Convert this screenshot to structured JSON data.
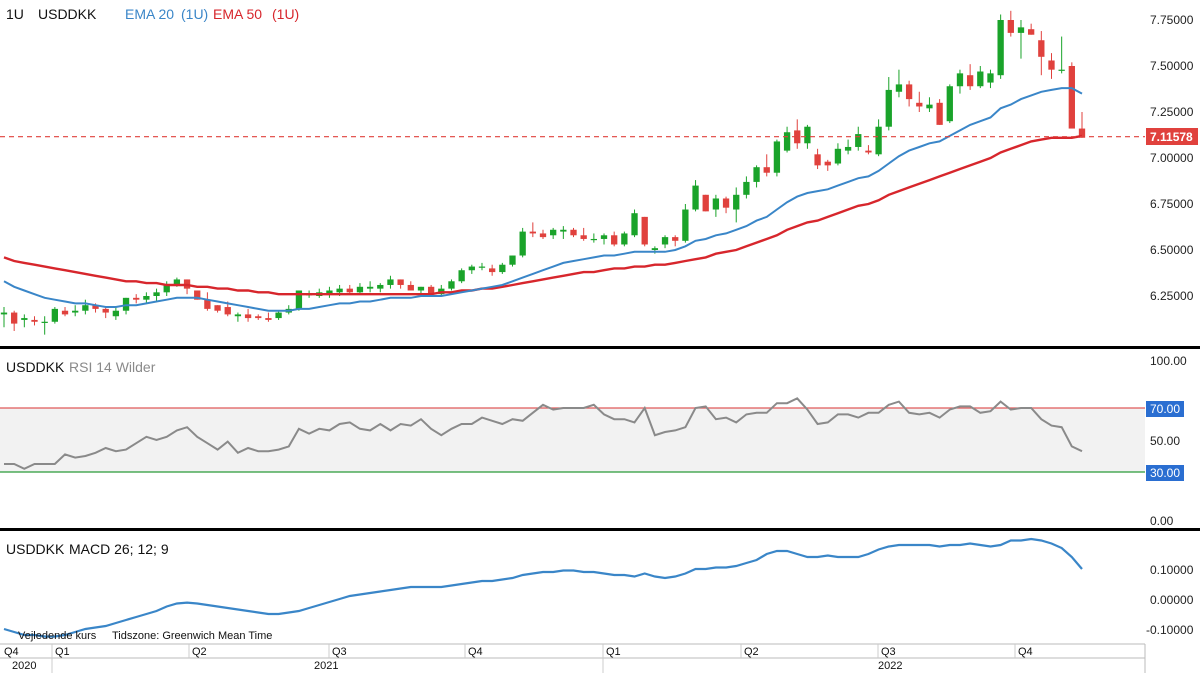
{
  "header": {
    "interval": "1U",
    "symbol": "USDDKK",
    "ema20_label": "EMA 20",
    "ema20_param": "(1U)",
    "ema50_label": "EMA 50",
    "ema50_param": "(1U)"
  },
  "colors": {
    "up": "#1aa32a",
    "down": "#e0413d",
    "ema20": "#3a86c8",
    "ema50": "#d7262c",
    "rsi": "#8a8a8a",
    "rsi_band": "#f2f2f2",
    "rsi_upper": "#e05a5a",
    "rsi_lower": "#2a9a38",
    "label_blue": "#2a6ed1",
    "macd": "#3a86c8",
    "separator": "#000000"
  },
  "price_panel": {
    "yticks": [
      "7.75000",
      "7.50000",
      "7.25000",
      "7.00000",
      "6.75000",
      "6.50000",
      "6.25000"
    ],
    "last_price_label": "7.11578",
    "last_price": 7.11578
  },
  "rsi_panel": {
    "symbol": "USDDKK",
    "title": "RSI 14 Wilder",
    "yticks": [
      "100.00",
      "50.00",
      "0.00"
    ],
    "upper_badge": "70.00",
    "lower_badge": "30.00"
  },
  "macd_panel": {
    "symbol": "USDDKK",
    "title": "MACD 26; 12; 9",
    "yticks": [
      "0.10000",
      "0.00000",
      "-0.10000"
    ]
  },
  "footer": {
    "note": "Vejledende kurs",
    "timezone": "Tidszone: Greenwich Mean Time",
    "quarters": [
      "Q4",
      "Q1",
      "Q2",
      "Q3",
      "Q4",
      "Q1",
      "Q2",
      "Q3",
      "Q4"
    ],
    "years": [
      "2020",
      "2021",
      "2022"
    ]
  },
  "chart_data": {
    "type": "candlestick",
    "interval": "1U",
    "series_names": [
      "USDDKK",
      "EMA 20",
      "EMA 50"
    ],
    "ylim": [
      6.02,
      7.82
    ],
    "candles": [
      [
        6.15,
        6.19,
        6.08,
        6.16
      ],
      [
        6.16,
        6.17,
        6.06,
        6.1
      ],
      [
        6.12,
        6.15,
        6.08,
        6.13
      ],
      [
        6.12,
        6.14,
        6.09,
        6.11
      ],
      [
        6.11,
        6.14,
        6.04,
        6.11
      ],
      [
        6.11,
        6.19,
        6.1,
        6.18
      ],
      [
        6.17,
        6.19,
        6.14,
        6.15
      ],
      [
        6.16,
        6.2,
        6.14,
        6.17
      ],
      [
        6.17,
        6.23,
        6.15,
        6.2
      ],
      [
        6.2,
        6.21,
        6.16,
        6.18
      ],
      [
        6.18,
        6.19,
        6.13,
        6.16
      ],
      [
        6.14,
        6.19,
        6.12,
        6.17
      ],
      [
        6.17,
        6.24,
        6.15,
        6.24
      ],
      [
        6.24,
        6.26,
        6.21,
        6.23
      ],
      [
        6.23,
        6.27,
        6.21,
        6.25
      ],
      [
        6.25,
        6.29,
        6.22,
        6.27
      ],
      [
        6.27,
        6.33,
        6.25,
        6.31
      ],
      [
        6.31,
        6.35,
        6.3,
        6.34
      ],
      [
        6.34,
        6.34,
        6.26,
        6.29
      ],
      [
        6.28,
        6.28,
        6.23,
        6.23
      ],
      [
        6.23,
        6.27,
        6.17,
        6.18
      ],
      [
        6.2,
        6.2,
        6.16,
        6.17
      ],
      [
        6.19,
        6.22,
        6.14,
        6.15
      ],
      [
        6.14,
        6.16,
        6.11,
        6.15
      ],
      [
        6.15,
        6.18,
        6.11,
        6.13
      ],
      [
        6.14,
        6.15,
        6.12,
        6.13
      ],
      [
        6.13,
        6.16,
        6.11,
        6.12
      ],
      [
        6.13,
        6.17,
        6.12,
        6.16
      ],
      [
        6.16,
        6.2,
        6.15,
        6.18
      ],
      [
        6.18,
        6.28,
        6.17,
        6.28
      ],
      [
        6.26,
        6.28,
        6.24,
        6.26
      ],
      [
        6.25,
        6.29,
        6.24,
        6.27
      ],
      [
        6.26,
        6.3,
        6.24,
        6.28
      ],
      [
        6.27,
        6.31,
        6.25,
        6.29
      ],
      [
        6.29,
        6.31,
        6.26,
        6.27
      ],
      [
        6.27,
        6.32,
        6.26,
        6.3
      ],
      [
        6.29,
        6.33,
        6.27,
        6.3
      ],
      [
        6.29,
        6.32,
        6.27,
        6.31
      ],
      [
        6.31,
        6.36,
        6.29,
        6.34
      ],
      [
        6.34,
        6.34,
        6.29,
        6.31
      ],
      [
        6.31,
        6.33,
        6.28,
        6.28
      ],
      [
        6.28,
        6.3,
        6.26,
        6.3
      ],
      [
        6.3,
        6.31,
        6.25,
        6.26
      ],
      [
        6.26,
        6.31,
        6.25,
        6.29
      ],
      [
        6.29,
        6.34,
        6.28,
        6.33
      ],
      [
        6.33,
        6.4,
        6.32,
        6.39
      ],
      [
        6.39,
        6.42,
        6.37,
        6.41
      ],
      [
        6.41,
        6.43,
        6.39,
        6.41
      ],
      [
        6.4,
        6.42,
        6.36,
        6.38
      ],
      [
        6.38,
        6.43,
        6.37,
        6.42
      ],
      [
        6.42,
        6.47,
        6.41,
        6.47
      ],
      [
        6.47,
        6.62,
        6.46,
        6.6
      ],
      [
        6.6,
        6.65,
        6.57,
        6.59
      ],
      [
        6.59,
        6.61,
        6.56,
        6.57
      ],
      [
        6.58,
        6.62,
        6.56,
        6.61
      ],
      [
        6.6,
        6.63,
        6.56,
        6.61
      ],
      [
        6.61,
        6.62,
        6.57,
        6.58
      ],
      [
        6.58,
        6.62,
        6.55,
        6.56
      ],
      [
        6.56,
        6.59,
        6.54,
        6.56
      ],
      [
        6.56,
        6.59,
        6.53,
        6.58
      ],
      [
        6.58,
        6.6,
        6.52,
        6.53
      ],
      [
        6.53,
        6.6,
        6.52,
        6.59
      ],
      [
        6.58,
        6.72,
        6.57,
        6.7
      ],
      [
        6.68,
        6.68,
        6.52,
        6.53
      ],
      [
        6.5,
        6.52,
        6.48,
        6.51
      ],
      [
        6.53,
        6.58,
        6.51,
        6.57
      ],
      [
        6.57,
        6.58,
        6.52,
        6.55
      ],
      [
        6.55,
        6.75,
        6.54,
        6.72
      ],
      [
        6.72,
        6.88,
        6.71,
        6.85
      ],
      [
        6.8,
        6.8,
        6.71,
        6.71
      ],
      [
        6.72,
        6.8,
        6.68,
        6.78
      ],
      [
        6.78,
        6.79,
        6.7,
        6.73
      ],
      [
        6.72,
        6.84,
        6.65,
        6.8
      ],
      [
        6.8,
        6.9,
        6.78,
        6.87
      ],
      [
        6.87,
        6.96,
        6.84,
        6.95
      ],
      [
        6.95,
        7.02,
        6.9,
        6.92
      ],
      [
        6.92,
        7.1,
        6.9,
        7.09
      ],
      [
        7.04,
        7.17,
        7.03,
        7.14
      ],
      [
        7.15,
        7.21,
        7.05,
        7.08
      ],
      [
        7.08,
        7.18,
        7.05,
        7.17
      ],
      [
        7.02,
        7.05,
        6.94,
        6.96
      ],
      [
        6.98,
        6.99,
        6.93,
        6.96
      ],
      [
        6.97,
        7.08,
        6.96,
        7.05
      ],
      [
        7.04,
        7.1,
        7.02,
        7.06
      ],
      [
        7.06,
        7.17,
        7.04,
        7.13
      ],
      [
        7.04,
        7.07,
        7.02,
        7.03
      ],
      [
        7.02,
        7.21,
        7.01,
        7.17
      ],
      [
        7.17,
        7.44,
        7.15,
        7.37
      ],
      [
        7.36,
        7.48,
        7.33,
        7.4
      ],
      [
        7.4,
        7.42,
        7.28,
        7.32
      ],
      [
        7.3,
        7.36,
        7.25,
        7.28
      ],
      [
        7.27,
        7.33,
        7.25,
        7.29
      ],
      [
        7.3,
        7.32,
        7.18,
        7.18
      ],
      [
        7.2,
        7.4,
        7.19,
        7.39
      ],
      [
        7.39,
        7.48,
        7.35,
        7.46
      ],
      [
        7.45,
        7.51,
        7.37,
        7.39
      ],
      [
        7.39,
        7.5,
        7.38,
        7.47
      ],
      [
        7.41,
        7.48,
        7.38,
        7.46
      ],
      [
        7.45,
        7.78,
        7.43,
        7.75
      ],
      [
        7.75,
        7.8,
        7.66,
        7.68
      ],
      [
        7.68,
        7.75,
        7.54,
        7.71
      ],
      [
        7.7,
        7.73,
        7.67,
        7.67
      ],
      [
        7.64,
        7.69,
        7.45,
        7.55
      ],
      [
        7.53,
        7.57,
        7.43,
        7.48
      ],
      [
        7.48,
        7.66,
        7.46,
        7.48
      ],
      [
        7.5,
        7.52,
        7.17,
        7.16
      ],
      [
        7.16,
        7.25,
        7.11,
        7.11
      ]
    ],
    "ema20": [
      6.33,
      6.3,
      6.28,
      6.26,
      6.24,
      6.23,
      6.22,
      6.21,
      6.21,
      6.2,
      6.19,
      6.19,
      6.2,
      6.2,
      6.21,
      6.22,
      6.23,
      6.24,
      6.24,
      6.24,
      6.23,
      6.22,
      6.21,
      6.2,
      6.19,
      6.18,
      6.17,
      6.17,
      6.17,
      6.18,
      6.18,
      6.19,
      6.2,
      6.21,
      6.21,
      6.22,
      6.22,
      6.23,
      6.24,
      6.24,
      6.24,
      6.25,
      6.25,
      6.25,
      6.26,
      6.27,
      6.28,
      6.29,
      6.3,
      6.31,
      6.33,
      6.35,
      6.37,
      6.39,
      6.41,
      6.43,
      6.44,
      6.45,
      6.46,
      6.47,
      6.47,
      6.48,
      6.49,
      6.49,
      6.49,
      6.49,
      6.5,
      6.52,
      6.55,
      6.56,
      6.58,
      6.59,
      6.61,
      6.63,
      6.66,
      6.68,
      6.72,
      6.76,
      6.79,
      6.81,
      6.82,
      6.83,
      6.85,
      6.87,
      6.89,
      6.9,
      6.93,
      6.97,
      7.01,
      7.04,
      7.06,
      7.08,
      7.09,
      7.12,
      7.15,
      7.18,
      7.2,
      7.22,
      7.27,
      7.29,
      7.32,
      7.34,
      7.36,
      7.37,
      7.38,
      7.38,
      7.35
    ],
    "ema50": [
      6.46,
      6.44,
      6.43,
      6.42,
      6.41,
      6.4,
      6.39,
      6.38,
      6.37,
      6.36,
      6.35,
      6.34,
      6.33,
      6.33,
      6.32,
      6.32,
      6.31,
      6.31,
      6.31,
      6.3,
      6.3,
      6.29,
      6.29,
      6.28,
      6.28,
      6.27,
      6.27,
      6.26,
      6.26,
      6.26,
      6.26,
      6.26,
      6.26,
      6.26,
      6.26,
      6.26,
      6.26,
      6.26,
      6.26,
      6.26,
      6.26,
      6.26,
      6.26,
      6.27,
      6.27,
      6.28,
      6.28,
      6.29,
      6.29,
      6.3,
      6.31,
      6.32,
      6.33,
      6.34,
      6.35,
      6.36,
      6.37,
      6.38,
      6.38,
      6.39,
      6.4,
      6.4,
      6.41,
      6.41,
      6.42,
      6.42,
      6.43,
      6.44,
      6.45,
      6.46,
      6.48,
      6.49,
      6.5,
      6.52,
      6.54,
      6.56,
      6.58,
      6.61,
      6.63,
      6.65,
      6.66,
      6.68,
      6.7,
      6.72,
      6.74,
      6.75,
      6.77,
      6.8,
      6.82,
      6.84,
      6.86,
      6.88,
      6.9,
      6.92,
      6.94,
      6.96,
      6.98,
      7.0,
      7.03,
      7.05,
      7.07,
      7.09,
      7.1,
      7.11,
      7.11,
      7.11,
      7.12
    ],
    "rsi": [
      35,
      35,
      32,
      35,
      35,
      35,
      41,
      39,
      40,
      42,
      45,
      43,
      44,
      48,
      52,
      50,
      52,
      56,
      58,
      52,
      48,
      44,
      49,
      42,
      45,
      43,
      43,
      44,
      46,
      57,
      54,
      57,
      56,
      60,
      61,
      57,
      56,
      60,
      56,
      60,
      59,
      63,
      57,
      53,
      57,
      60,
      60,
      64,
      62,
      60,
      63,
      62,
      67,
      72,
      69,
      70,
      70,
      70,
      72,
      66,
      63,
      63,
      61,
      70,
      53,
      55,
      56,
      58,
      70,
      71,
      63,
      64,
      61,
      66,
      67,
      67,
      73,
      73,
      76,
      69,
      60,
      61,
      66,
      66,
      64,
      67,
      67,
      72,
      74,
      67,
      66,
      67,
      64,
      69,
      71,
      71,
      67,
      68,
      74,
      69,
      70,
      70,
      63,
      59,
      58,
      46,
      43
    ],
    "rsi_levels": [
      70,
      30
    ],
    "rsi_ylim": [
      0,
      100
    ],
    "macd": [
      -0.1,
      -0.11,
      -0.12,
      -0.12,
      -0.125,
      -0.125,
      -0.12,
      -0.11,
      -0.1,
      -0.095,
      -0.09,
      -0.08,
      -0.07,
      -0.06,
      -0.05,
      -0.04,
      -0.025,
      -0.015,
      -0.012,
      -0.015,
      -0.02,
      -0.025,
      -0.03,
      -0.035,
      -0.04,
      -0.045,
      -0.05,
      -0.05,
      -0.045,
      -0.04,
      -0.03,
      -0.02,
      -0.01,
      0.0,
      0.01,
      0.015,
      0.02,
      0.025,
      0.03,
      0.035,
      0.04,
      0.04,
      0.04,
      0.04,
      0.045,
      0.05,
      0.055,
      0.06,
      0.06,
      0.065,
      0.07,
      0.08,
      0.085,
      0.09,
      0.09,
      0.095,
      0.095,
      0.09,
      0.09,
      0.085,
      0.08,
      0.08,
      0.075,
      0.085,
      0.075,
      0.07,
      0.075,
      0.085,
      0.1,
      0.1,
      0.105,
      0.105,
      0.11,
      0.12,
      0.13,
      0.15,
      0.16,
      0.16,
      0.15,
      0.14,
      0.14,
      0.145,
      0.14,
      0.14,
      0.14,
      0.15,
      0.165,
      0.175,
      0.18,
      0.18,
      0.18,
      0.18,
      0.175,
      0.18,
      0.18,
      0.185,
      0.18,
      0.175,
      0.18,
      0.195,
      0.195,
      0.2,
      0.195,
      0.185,
      0.17,
      0.14,
      0.1
    ],
    "macd_ylim": [
      -0.14,
      0.235
    ]
  }
}
